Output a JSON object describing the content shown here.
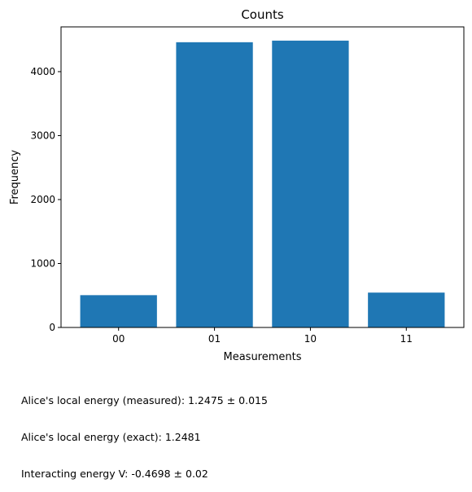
{
  "chart_data": {
    "type": "bar",
    "title": "Counts",
    "xlabel": "Measurements",
    "ylabel": "Frequency",
    "categories": [
      "00",
      "01",
      "10",
      "11"
    ],
    "values": [
      505,
      4460,
      4485,
      545
    ],
    "ylim": [
      0,
      4700
    ],
    "yticks": [
      0,
      1000,
      2000,
      3000,
      4000
    ],
    "grid": false,
    "bar_color": "#1f77b4"
  },
  "notes": {
    "measured": "Alice's local energy (measured): 1.2475 ± 0.015",
    "exact": "Alice's local energy (exact): 1.2481",
    "interacting": "Interacting energy V: -0.4698 ± 0.02"
  }
}
